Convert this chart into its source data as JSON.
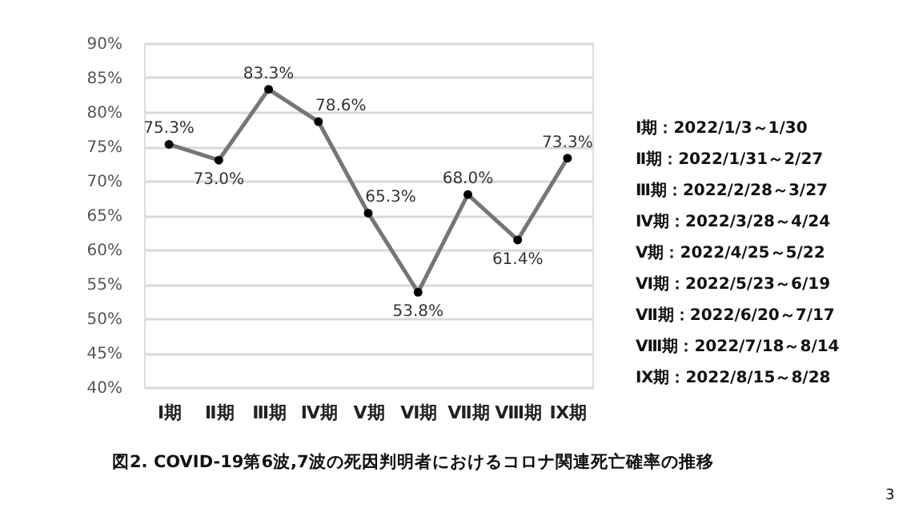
{
  "chart_data": {
    "type": "line",
    "categories": [
      "Ⅰ期",
      "Ⅱ期",
      "Ⅲ期",
      "Ⅳ期",
      "Ⅴ期",
      "Ⅵ期",
      "Ⅶ期",
      "Ⅷ期",
      "Ⅸ期"
    ],
    "series": [
      {
        "color": "#767676",
        "values": [
          75.3,
          73.0,
          83.3,
          78.6,
          65.3,
          53.8,
          68.0,
          61.4,
          73.3
        ],
        "value_labels": [
          "75.3%",
          "73.0%",
          "83.3%",
          "78.6%",
          "65.3%",
          "53.8%",
          "68.0%",
          "61.4%",
          "73.3%"
        ]
      }
    ],
    "ylim": [
      40,
      90
    ],
    "yticks": [
      {
        "value": 40,
        "label": "40%"
      },
      {
        "value": 45,
        "label": "45%"
      },
      {
        "value": 50,
        "label": "50%"
      },
      {
        "value": 55,
        "label": "55%"
      },
      {
        "value": 60,
        "label": "60%"
      },
      {
        "value": 65,
        "label": "65%"
      },
      {
        "value": 70,
        "label": "70%"
      },
      {
        "value": 75,
        "label": "75%"
      },
      {
        "value": 80,
        "label": "80%"
      },
      {
        "value": 85,
        "label": "85%"
      },
      {
        "value": 90,
        "label": "90%"
      }
    ],
    "grid": "y",
    "marker": "circle",
    "line_style": "solid",
    "annotations": [
      "Ⅰ期：2022/1/3～1/30",
      "Ⅱ期：2022/1/31～2/27",
      "Ⅲ期：2022/2/28～3/27",
      "Ⅳ期：2022/3/28～4/24",
      "Ⅴ期：2022/4/25～5/22",
      "Ⅵ期：2022/5/23～6/19",
      "Ⅶ期：2022/6/20～7/17",
      "Ⅷ期：2022/7/18～8/14",
      "Ⅸ期：2022/8/15～8/28",
      "図2. COVID-19第6波,7波の死因判明者におけるコロナ関連死亡確率の推移",
      "3"
    ]
  }
}
